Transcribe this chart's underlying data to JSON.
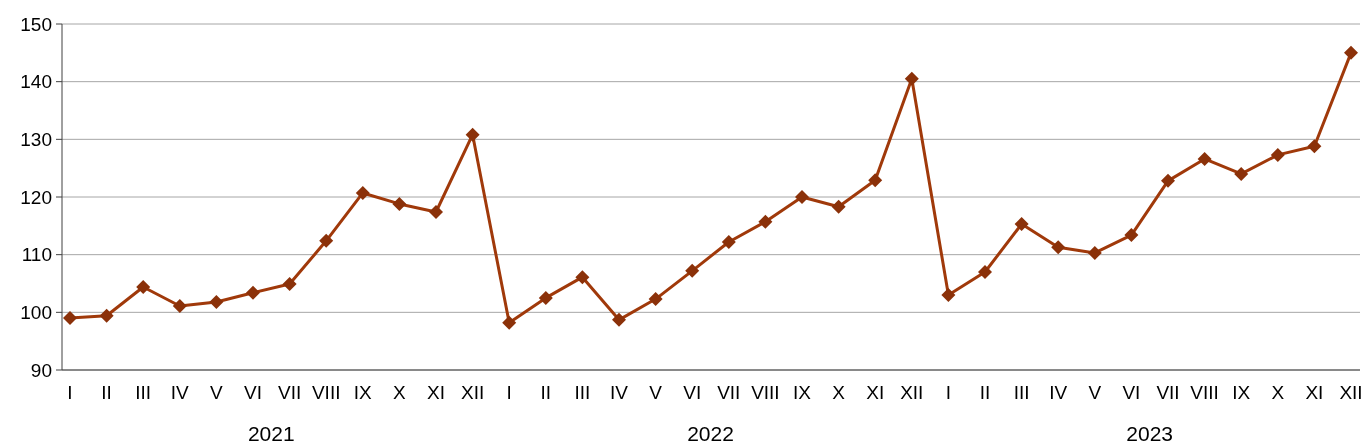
{
  "chart_data": {
    "type": "line",
    "categories": [
      "I",
      "II",
      "III",
      "IV",
      "V",
      "VI",
      "VII",
      "VIII",
      "IX",
      "X",
      "XI",
      "XII",
      "I",
      "II",
      "III",
      "IV",
      "V",
      "VI",
      "VII",
      "VIII",
      "IX",
      "X",
      "XI",
      "XII",
      "I",
      "II",
      "III",
      "IV",
      "V",
      "VI",
      "VII",
      "VIII",
      "IX",
      "X",
      "XI",
      "XII"
    ],
    "series": [
      {
        "color": "#a0390a",
        "values": [
          99.0,
          99.4,
          104.4,
          101.1,
          101.8,
          103.4,
          104.9,
          112.4,
          120.7,
          118.8,
          117.4,
          130.8,
          98.2,
          102.5,
          106.1,
          98.7,
          102.3,
          107.2,
          112.2,
          115.7,
          120.0,
          118.3,
          122.9,
          140.5,
          103.0,
          107.0,
          115.3,
          111.3,
          110.3,
          113.4,
          122.8,
          126.6,
          124.0,
          127.3,
          128.8,
          145.0
        ]
      }
    ],
    "ylim": [
      90,
      150
    ],
    "yticks": [
      90,
      100,
      110,
      120,
      130,
      140,
      150
    ],
    "grid": "y",
    "marker": "diamond",
    "line_style": "solid",
    "annotations": [
      "2021",
      "2022",
      "2023"
    ]
  }
}
